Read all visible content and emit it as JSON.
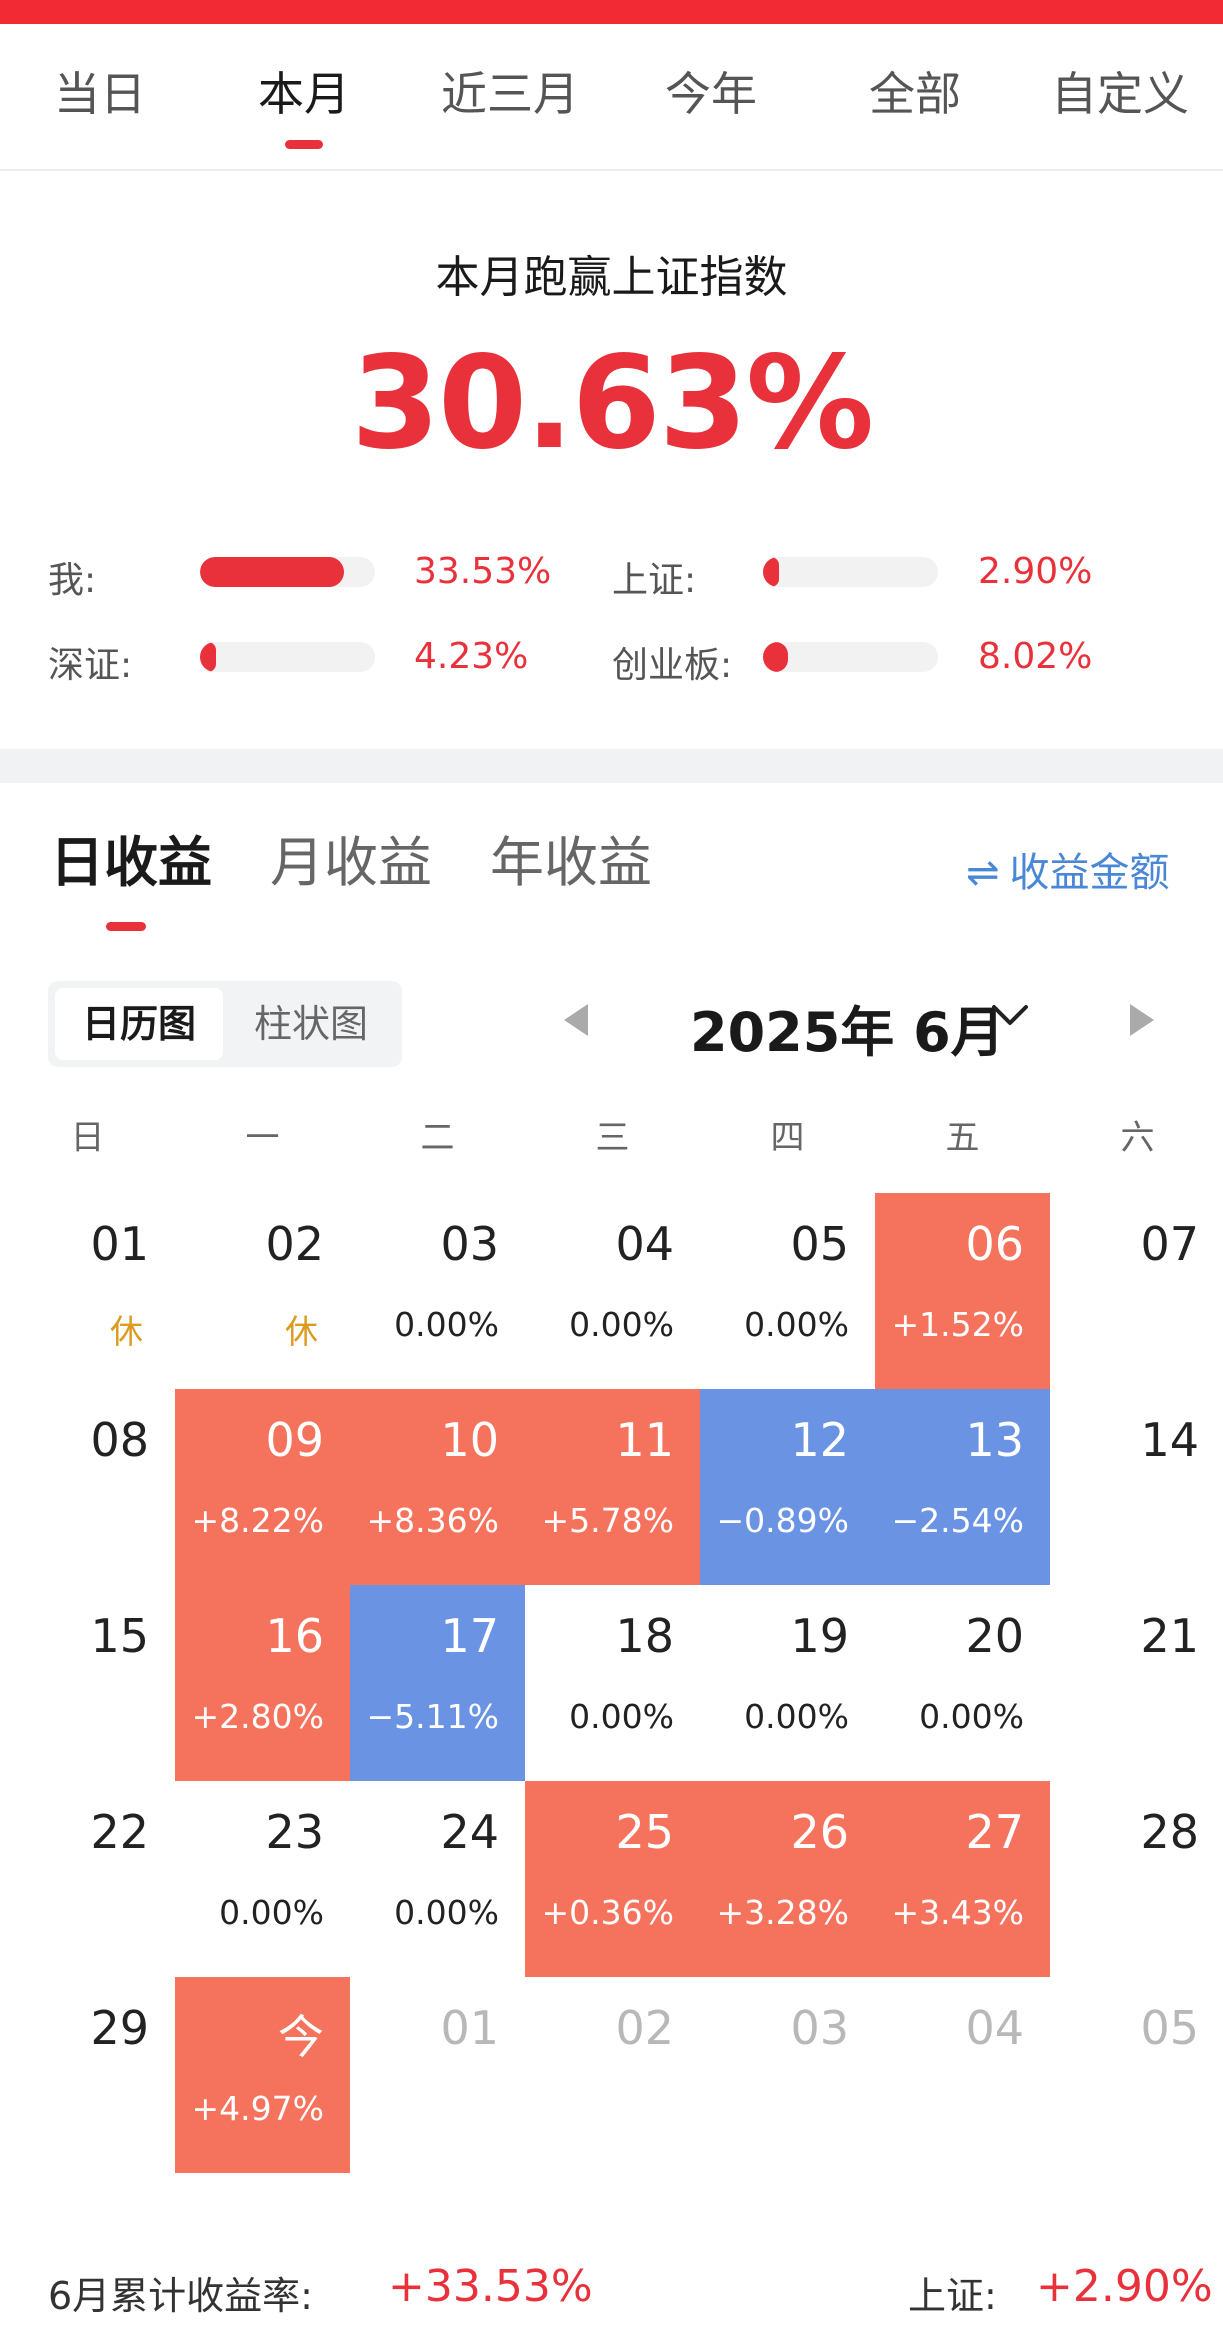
{
  "period_tabs": [
    "当日",
    "本月",
    "近三月",
    "今年",
    "全部",
    "自定义"
  ],
  "summary": {
    "title": "本月跑赢上证指数",
    "value": "30.63%",
    "comparisons": [
      {
        "label": "我:",
        "value": "33.53%",
        "fill": 0.82
      },
      {
        "label": "上证:",
        "value": "2.90%",
        "fill": 0.07
      },
      {
        "label": "深证:",
        "value": "4.23%",
        "fill": 0.07
      },
      {
        "label": "创业板:",
        "value": "8.02%",
        "fill": 0.14
      }
    ]
  },
  "earnings_tabs": [
    "日收益",
    "月收益",
    "年收益"
  ],
  "amount_toggle": {
    "icon": "swap-arrows-icon",
    "label": "收益金额"
  },
  "view_toggle": [
    "日历图",
    "柱状图"
  ],
  "month_label": "2025年 6月",
  "weekdays": [
    "日",
    "一",
    "二",
    "三",
    "四",
    "五",
    "六"
  ],
  "calendar": [
    [
      {
        "d": "01",
        "v": "休",
        "t": "rest"
      },
      {
        "d": "02",
        "v": "休",
        "t": "rest"
      },
      {
        "d": "03",
        "v": "0.00%",
        "t": "zero"
      },
      {
        "d": "04",
        "v": "0.00%",
        "t": "zero"
      },
      {
        "d": "05",
        "v": "0.00%",
        "t": "zero"
      },
      {
        "d": "06",
        "v": "+1.52%",
        "t": "pos"
      },
      {
        "d": "07",
        "v": "",
        "t": "none"
      }
    ],
    [
      {
        "d": "08",
        "v": "",
        "t": "none"
      },
      {
        "d": "09",
        "v": "+8.22%",
        "t": "pos"
      },
      {
        "d": "10",
        "v": "+8.36%",
        "t": "pos"
      },
      {
        "d": "11",
        "v": "+5.78%",
        "t": "pos"
      },
      {
        "d": "12",
        "v": "−0.89%",
        "t": "neg"
      },
      {
        "d": "13",
        "v": "−2.54%",
        "t": "neg"
      },
      {
        "d": "14",
        "v": "",
        "t": "none"
      }
    ],
    [
      {
        "d": "15",
        "v": "",
        "t": "none"
      },
      {
        "d": "16",
        "v": "+2.80%",
        "t": "pos"
      },
      {
        "d": "17",
        "v": "−5.11%",
        "t": "neg"
      },
      {
        "d": "18",
        "v": "0.00%",
        "t": "zero"
      },
      {
        "d": "19",
        "v": "0.00%",
        "t": "zero"
      },
      {
        "d": "20",
        "v": "0.00%",
        "t": "zero"
      },
      {
        "d": "21",
        "v": "",
        "t": "none"
      }
    ],
    [
      {
        "d": "22",
        "v": "",
        "t": "none"
      },
      {
        "d": "23",
        "v": "0.00%",
        "t": "zero"
      },
      {
        "d": "24",
        "v": "0.00%",
        "t": "zero"
      },
      {
        "d": "25",
        "v": "+0.36%",
        "t": "pos"
      },
      {
        "d": "26",
        "v": "+3.28%",
        "t": "pos"
      },
      {
        "d": "27",
        "v": "+3.43%",
        "t": "pos"
      },
      {
        "d": "28",
        "v": "",
        "t": "none"
      }
    ],
    [
      {
        "d": "29",
        "v": "",
        "t": "none"
      },
      {
        "d": "今",
        "v": "+4.97%",
        "t": "pos"
      },
      {
        "d": "01",
        "v": "",
        "t": "other"
      },
      {
        "d": "02",
        "v": "",
        "t": "other"
      },
      {
        "d": "03",
        "v": "",
        "t": "other"
      },
      {
        "d": "04",
        "v": "",
        "t": "other"
      },
      {
        "d": "05",
        "v": "",
        "t": "other"
      }
    ]
  ],
  "footer": {
    "label": "6月累计收益率:",
    "value": "+33.53%",
    "index_label": "上证:",
    "index_value": "+2.90%"
  },
  "colors": {
    "accent": "#e8313a",
    "positive": "#f5735d",
    "negative": "#6b93e4",
    "link": "#4a87d6",
    "rest": "#dc9a1e"
  }
}
